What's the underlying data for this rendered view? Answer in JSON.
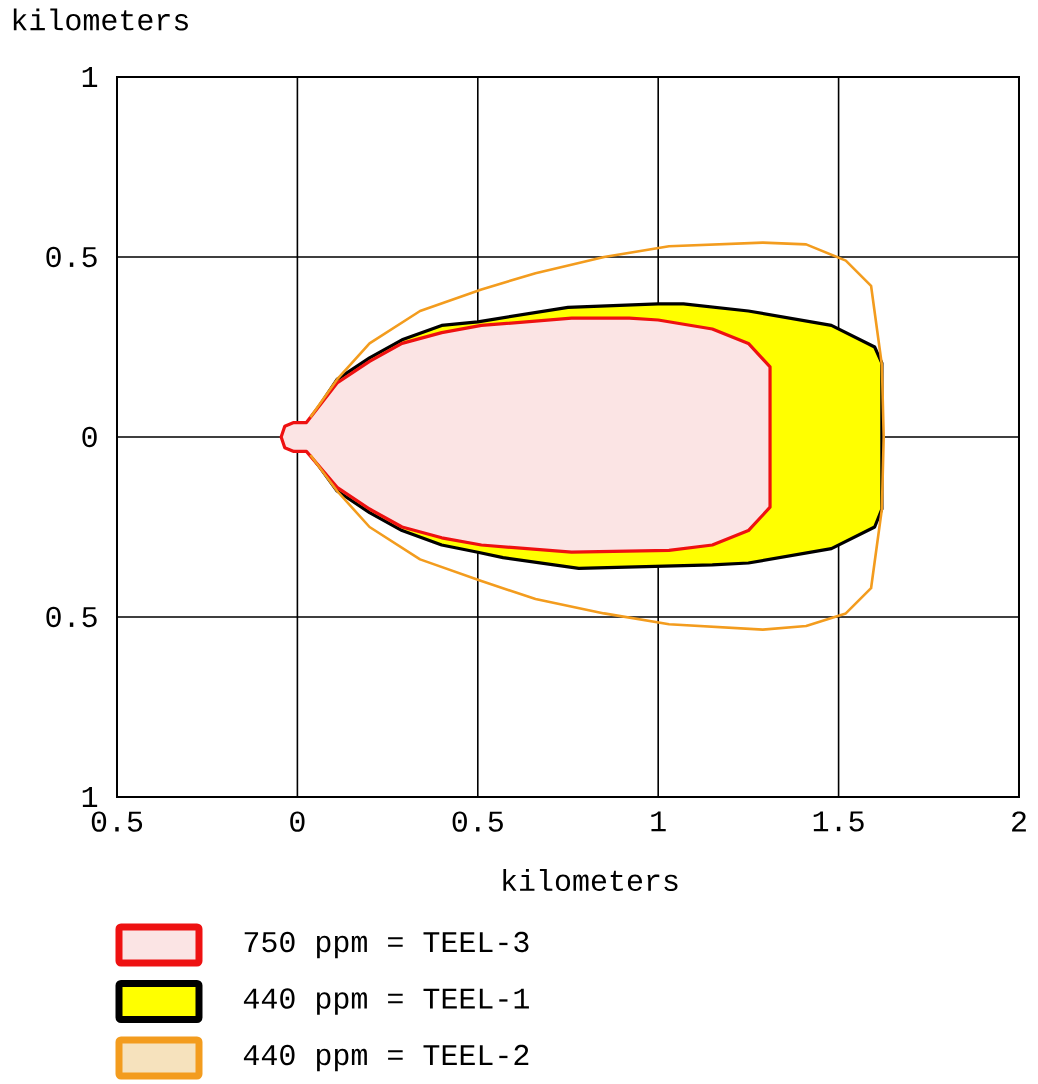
{
  "chart_data": {
    "type": "area",
    "xlabel": "kilometers",
    "ylabel": "kilometers",
    "xlim": [
      -0.5,
      2
    ],
    "ylim": [
      -1,
      1
    ],
    "xticks": [
      {
        "value": -0.5,
        "label": "0.5"
      },
      0,
      0.5,
      1,
      1.5,
      2
    ],
    "yticks": [
      {
        "value": -1,
        "label": "1"
      },
      {
        "value": -0.5,
        "label": "0.5"
      },
      0,
      0.5,
      1
    ],
    "grid": true,
    "legend": "bottom",
    "series": [
      {
        "name": "750 ppm = TEEL-3",
        "color": "#ee1111",
        "x": [
          0.025,
          0.11,
          0.2,
          0.29,
          0.4,
          0.51,
          0.76,
          0.92,
          1.0,
          1.15,
          1.25,
          1.31,
          1.31,
          1.25,
          1.15,
          1.03,
          0.76,
          0.51,
          0.4,
          0.29,
          0.2,
          0.11,
          0.025,
          -0.01,
          -0.035,
          -0.045,
          -0.035,
          -0.01
        ],
        "values": [
          0.04,
          0.15,
          0.21,
          0.26,
          0.29,
          0.31,
          0.33,
          0.33,
          0.325,
          0.3,
          0.26,
          0.195,
          -0.195,
          -0.26,
          -0.3,
          -0.315,
          -0.32,
          -0.3,
          -0.28,
          -0.25,
          -0.2,
          -0.14,
          -0.04,
          -0.04,
          -0.03,
          0,
          0.03,
          0.04
        ]
      },
      {
        "name": "440 ppm = TEEL-1",
        "color": "#000000",
        "x": [
          0.03,
          0.11,
          0.2,
          0.29,
          0.4,
          0.5,
          0.75,
          1.0,
          1.07,
          1.25,
          1.48,
          1.6,
          1.62,
          1.62,
          1.6,
          1.48,
          1.25,
          1.15,
          0.78,
          0.57,
          0.5,
          0.4,
          0.29,
          0.2,
          0.11,
          0.03
        ],
        "values": [
          0.04,
          0.16,
          0.22,
          0.27,
          0.31,
          0.32,
          0.36,
          0.37,
          0.37,
          0.35,
          0.31,
          0.25,
          0.205,
          -0.2,
          -0.25,
          -0.31,
          -0.35,
          -0.355,
          -0.365,
          -0.335,
          -0.32,
          -0.3,
          -0.26,
          -0.21,
          -0.15,
          -0.04
        ]
      },
      {
        "name": "440 ppm = TEEL-2",
        "type": "line",
        "color": "#f39c1e",
        "x": [
          0.036,
          0.11,
          0.2,
          0.34,
          0.51,
          0.66,
          0.85,
          1.03,
          1.29,
          1.41,
          1.52,
          1.59,
          1.62,
          1.625,
          1.62,
          1.59,
          1.52,
          1.41,
          1.29,
          1.03,
          0.85,
          0.66,
          0.51,
          0.34,
          0.2,
          0.11,
          0.036
        ],
        "values": [
          0.055,
          0.16,
          0.26,
          0.35,
          0.41,
          0.455,
          0.5,
          0.53,
          0.54,
          0.535,
          0.49,
          0.42,
          0.2,
          0,
          -0.2,
          -0.42,
          -0.49,
          -0.525,
          -0.535,
          -0.52,
          -0.49,
          -0.45,
          -0.4,
          -0.34,
          -0.25,
          -0.15,
          -0.05
        ]
      }
    ]
  }
}
